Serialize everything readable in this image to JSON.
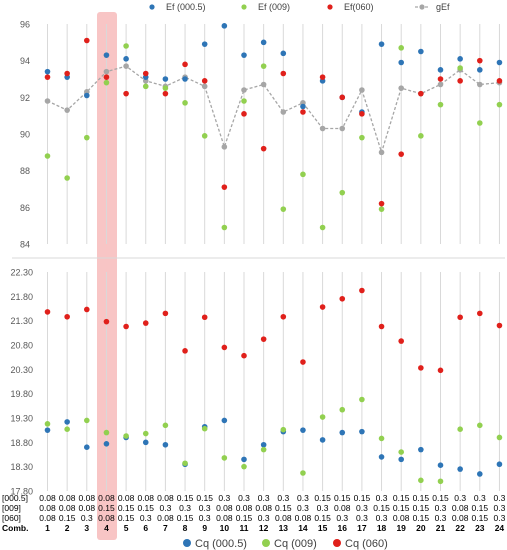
{
  "chart_data": [
    {
      "type": "scatter",
      "panel": "top",
      "ylim": [
        84,
        96
      ],
      "yticks": [
        "84",
        "86",
        "88",
        "90",
        "92",
        "94",
        "96"
      ],
      "grid": true,
      "legend_position": "top-right",
      "highlight_combination": 4,
      "highlight_color": "#f4a6a6",
      "series": [
        {
          "name": "Ef (000.5)",
          "color": "#2e75b6",
          "marker": "dot",
          "values": [
            93.4,
            93.1,
            92.1,
            94.3,
            94.1,
            93.1,
            93.0,
            93.0,
            94.9,
            95.9,
            94.3,
            95.0,
            94.4,
            91.5,
            92.9,
            92.0,
            91.2,
            94.9,
            93.9,
            94.5,
            93.5,
            94.1,
            93.5,
            93.9
          ]
        },
        {
          "name": "Ef (009)",
          "color": "#92d050",
          "marker": "dot",
          "values": [
            88.8,
            87.6,
            89.8,
            92.8,
            94.8,
            92.6,
            92.5,
            91.7,
            89.9,
            84.9,
            91.8,
            93.7,
            85.9,
            87.8,
            84.9,
            86.8,
            89.8,
            85.9,
            94.7,
            89.9,
            91.6,
            93.6,
            90.6,
            91.6
          ]
        },
        {
          "name": "Ef(060)",
          "color": "#e0201b",
          "marker": "dot",
          "values": [
            93.1,
            93.3,
            95.1,
            93.1,
            92.2,
            93.3,
            92.2,
            93.8,
            92.9,
            87.1,
            91.1,
            89.2,
            93.3,
            91.2,
            93.1,
            92.0,
            91.1,
            86.2,
            88.9,
            92.2,
            93.0,
            92.9,
            94.0,
            92.9
          ]
        },
        {
          "name": "gEf",
          "color": "#a6a6a6",
          "marker": "dot-line",
          "values": [
            91.8,
            91.3,
            92.3,
            93.4,
            93.7,
            92.9,
            92.6,
            93.1,
            92.6,
            89.3,
            92.4,
            92.7,
            91.2,
            91.7,
            90.3,
            90.3,
            92.4,
            89.0,
            92.5,
            92.2,
            92.7,
            93.5,
            92.7,
            92.8
          ]
        }
      ]
    },
    {
      "type": "scatter",
      "panel": "bottom",
      "ylim": [
        17.8,
        22.3
      ],
      "yticks": [
        "17.80",
        "18.30",
        "18.80",
        "19.30",
        "19.80",
        "20.30",
        "20.80",
        "21.30",
        "21.80",
        "22.30"
      ],
      "grid": true,
      "legend_position": "bottom",
      "series": [
        {
          "name": "Cq (000.5)",
          "color": "#2e75b6",
          "marker": "dot",
          "values": [
            19.05,
            19.22,
            18.7,
            18.77,
            18.9,
            18.8,
            18.75,
            18.35,
            19.12,
            19.25,
            18.45,
            18.75,
            19.02,
            19.05,
            18.85,
            19.0,
            19.02,
            18.5,
            18.45,
            18.65,
            18.33,
            18.25,
            18.15,
            18.35
          ]
        },
        {
          "name": "Cq (009)",
          "color": "#92d050",
          "marker": "dot",
          "values": [
            19.18,
            19.07,
            19.25,
            19.0,
            18.93,
            18.98,
            19.15,
            18.37,
            19.08,
            18.48,
            18.3,
            18.65,
            19.06,
            18.17,
            19.32,
            19.47,
            19.68,
            18.88,
            18.6,
            18.02,
            18.0,
            19.07,
            19.15,
            18.9
          ]
        },
        {
          "name": "Cq (060)",
          "color": "#e0201b",
          "marker": "dot",
          "values": [
            21.48,
            21.38,
            21.53,
            21.28,
            21.18,
            21.25,
            21.45,
            20.68,
            21.37,
            20.75,
            20.58,
            20.92,
            21.38,
            20.45,
            21.58,
            21.75,
            21.92,
            21.18,
            20.88,
            20.33,
            20.28,
            21.37,
            21.45,
            21.2
          ]
        }
      ]
    }
  ],
  "table": {
    "row_labels": [
      "[000.5]",
      "[009]",
      "[060]",
      "Comb."
    ],
    "rows": [
      [
        "0.08",
        "0.08",
        "0.08",
        "0.08",
        "0.08",
        "0.08",
        "0.08",
        "0.15",
        "0.15",
        "0.3",
        "0.3",
        "0.3",
        "0.3",
        "0.3",
        "0.15",
        "0.15",
        "0.15",
        "0.3",
        "0.15",
        "0.15",
        "0.15",
        "0.3",
        "0.3",
        "0.3"
      ],
      [
        "0.08",
        "0.08",
        "0.08",
        "0.15",
        "0.15",
        "0.15",
        "0.3",
        "0.3",
        "0.3",
        "0.08",
        "0.08",
        "0.08",
        "0.15",
        "0.3",
        "0.3",
        "0.08",
        "0.3",
        "0.15",
        "0.15",
        "0.15",
        "0.3",
        "0.08",
        "0.15",
        "0.3"
      ],
      [
        "0.08",
        "0.15",
        "0.3",
        "0.08",
        "0.15",
        "0.3",
        "0.08",
        "0.15",
        "0.3",
        "0.08",
        "0.15",
        "0.3",
        "0.08",
        "0.08",
        "0.15",
        "0.3",
        "0.3",
        "0.3",
        "0.08",
        "0.15",
        "0.3",
        "0.08",
        "0.15",
        "0.3"
      ],
      [
        "1",
        "2",
        "3",
        "4",
        "5",
        "6",
        "7",
        "8",
        "9",
        "10",
        "11",
        "12",
        "13",
        "14",
        "15",
        "16",
        "17",
        "18",
        "19",
        "20",
        "21",
        "22",
        "23",
        "24"
      ]
    ]
  }
}
